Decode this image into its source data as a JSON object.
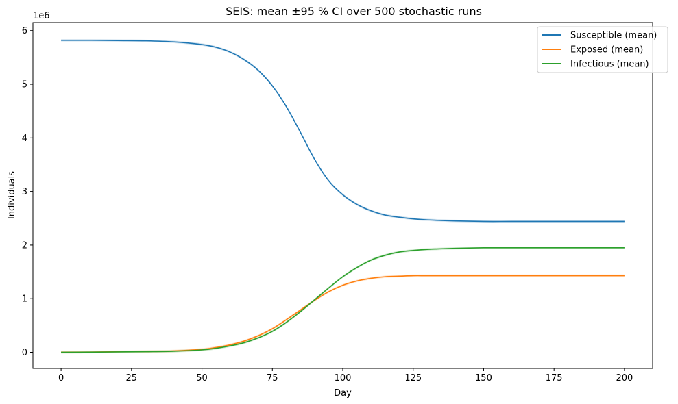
{
  "chart_data": {
    "type": "line",
    "title": "SEIS: mean ±95 % CI over 500 stochastic runs",
    "xlabel": "Day",
    "ylabel": "Individuals",
    "y_scale_note": "1e6",
    "xlim": [
      -10,
      210
    ],
    "ylim": [
      -0.3,
      6.15
    ],
    "xticks": [
      0,
      25,
      50,
      75,
      100,
      125,
      150,
      175,
      200
    ],
    "yticks": [
      0,
      1,
      2,
      3,
      4,
      5,
      6
    ],
    "grid": false,
    "legend_position": "top-right",
    "x": [
      0,
      10,
      20,
      30,
      40,
      50,
      55,
      60,
      65,
      70,
      75,
      80,
      85,
      90,
      95,
      100,
      105,
      110,
      115,
      120,
      125,
      130,
      140,
      150,
      160,
      175,
      200
    ],
    "series": [
      {
        "name": "Susceptible (mean)",
        "color": "#1f77b4",
        "values": [
          5.82,
          5.82,
          5.815,
          5.81,
          5.79,
          5.74,
          5.69,
          5.6,
          5.46,
          5.26,
          4.97,
          4.58,
          4.1,
          3.6,
          3.2,
          2.94,
          2.76,
          2.64,
          2.56,
          2.52,
          2.49,
          2.47,
          2.45,
          2.44,
          2.44,
          2.44,
          2.44
        ]
      },
      {
        "name": "Exposed (mean)",
        "color": "#ff7f0e",
        "values": [
          0.0,
          0.005,
          0.01,
          0.015,
          0.025,
          0.055,
          0.09,
          0.14,
          0.21,
          0.31,
          0.44,
          0.61,
          0.79,
          0.97,
          1.13,
          1.25,
          1.33,
          1.38,
          1.41,
          1.42,
          1.43,
          1.43,
          1.43,
          1.43,
          1.43,
          1.43,
          1.43
        ]
      },
      {
        "name": "Infectious (mean)",
        "color": "#2ca02c",
        "values": [
          0.0,
          0.003,
          0.007,
          0.012,
          0.02,
          0.045,
          0.075,
          0.12,
          0.18,
          0.27,
          0.39,
          0.56,
          0.76,
          0.98,
          1.2,
          1.41,
          1.58,
          1.72,
          1.81,
          1.87,
          1.9,
          1.92,
          1.94,
          1.95,
          1.95,
          1.95,
          1.95
        ]
      }
    ]
  }
}
